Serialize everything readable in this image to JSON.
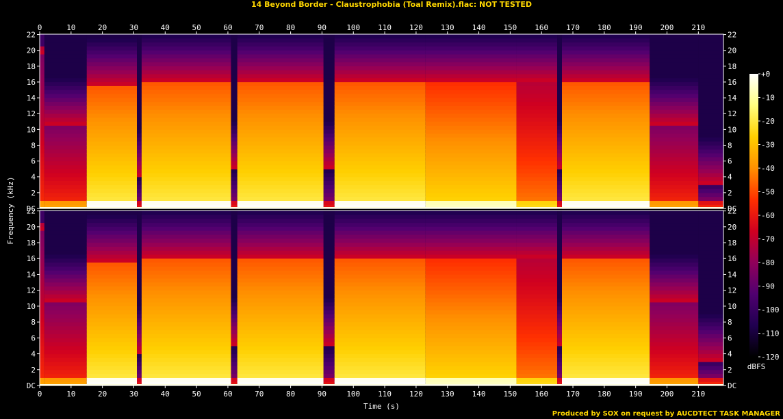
{
  "title": "14 Beyond Border - Claustrophobia (Toal Remix).flac: NOT TESTED",
  "credit": "Produced by SOX on request by AUCDTECT TASK MANAGER",
  "chart_data": {
    "type": "heatmap",
    "xlabel": "Time (s)",
    "ylabel": "Frequency (kHz)",
    "x_range": [
      0,
      218
    ],
    "x_ticks": [
      0,
      10,
      20,
      30,
      40,
      50,
      60,
      70,
      80,
      90,
      100,
      110,
      120,
      130,
      140,
      150,
      160,
      170,
      180,
      190,
      200,
      210
    ],
    "y_range": [
      0,
      22.05
    ],
    "y_ticks": [
      0,
      2,
      4,
      6,
      8,
      10,
      12,
      14,
      16,
      18,
      20,
      22
    ],
    "y_tick_labels": [
      "DC",
      "2",
      "4",
      "6",
      "8",
      "10",
      "12",
      "14",
      "16",
      "18",
      "20",
      "22"
    ],
    "channels": 2,
    "colorbar": {
      "label": "dBFS",
      "ticks": [
        0,
        -10,
        -20,
        -30,
        -40,
        -50,
        -60,
        -70,
        -80,
        -90,
        -100,
        -110,
        -120
      ],
      "tick_labels": [
        "+0",
        "-10",
        "-20",
        "-30",
        "-40",
        "-50",
        "-60",
        "-70",
        "-80",
        "-90",
        "-100",
        "-110",
        "-120"
      ],
      "colors": [
        "#ffffff",
        "#ffff80",
        "#ffd000",
        "#ff9000",
        "#ff3000",
        "#d00020",
        "#90005a",
        "#500070",
        "#200050",
        "#000000"
      ]
    },
    "segments": [
      {
        "start": 0,
        "end": 1.5,
        "cutoff_khz": 19.5,
        "level": 0.55
      },
      {
        "start": 1.5,
        "end": 15,
        "cutoff_khz": 10.5,
        "level": 0.55
      },
      {
        "start": 15,
        "end": 31,
        "cutoff_khz": 15.5,
        "level": 0.85
      },
      {
        "start": 31,
        "end": 32.5,
        "cutoff_khz": 4,
        "level": 0.35
      },
      {
        "start": 32.5,
        "end": 61,
        "cutoff_khz": 16,
        "level": 0.85
      },
      {
        "start": 61,
        "end": 63,
        "cutoff_khz": 5,
        "level": 0.35
      },
      {
        "start": 63,
        "end": 90.5,
        "cutoff_khz": 16,
        "level": 0.85
      },
      {
        "start": 90.5,
        "end": 94,
        "cutoff_khz": 5,
        "level": 0.35
      },
      {
        "start": 94,
        "end": 123,
        "cutoff_khz": 16,
        "level": 0.85
      },
      {
        "start": 123,
        "end": 152,
        "cutoff_khz": 16,
        "level": 0.8
      },
      {
        "start": 152,
        "end": 165,
        "cutoff_khz": 16,
        "level": 0.65
      },
      {
        "start": 165,
        "end": 166.5,
        "cutoff_khz": 5,
        "level": 0.35
      },
      {
        "start": 166.5,
        "end": 194.5,
        "cutoff_khz": 16,
        "level": 0.85
      },
      {
        "start": 194.5,
        "end": 210,
        "cutoff_khz": 10.5,
        "level": 0.55
      },
      {
        "start": 210,
        "end": 218,
        "cutoff_khz": 3,
        "level": 0.4
      }
    ]
  }
}
